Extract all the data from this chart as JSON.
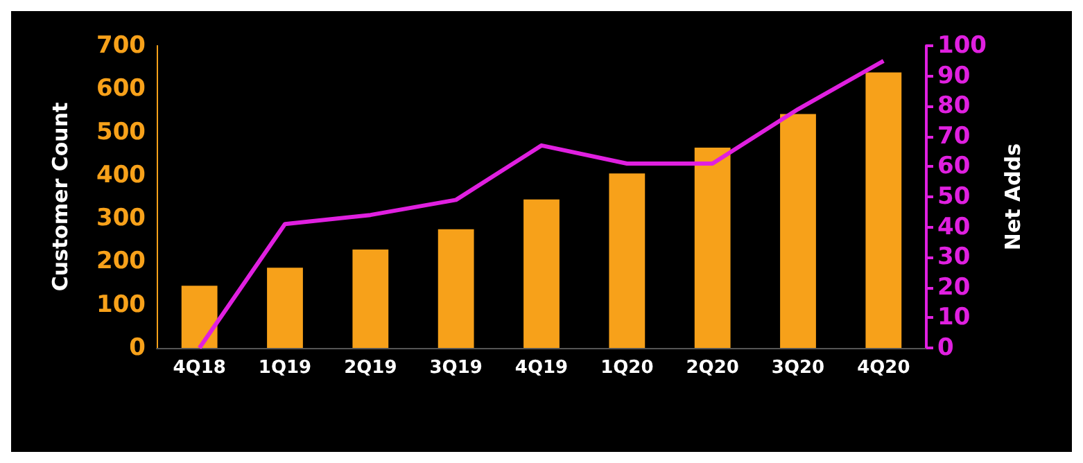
{
  "chart_data": {
    "type": "bar",
    "xlabel": null,
    "ylabel": "Customer Count",
    "y2label": "Net Adds",
    "categories": [
      "4Q18",
      "1Q19",
      "2Q19",
      "3Q19",
      "4Q19",
      "1Q20",
      "2Q20",
      "3Q20",
      "4Q20"
    ],
    "series": [
      {
        "color": "#f7a11a",
        "values": [
          144,
          186,
          228,
          275,
          344,
          404,
          464,
          542,
          638
        ]
      },
      {
        "type": "line",
        "axis": "y2",
        "color": "#e020e0",
        "marker": "none",
        "values": [
          0,
          41,
          44,
          49,
          67,
          61,
          61,
          79,
          95
        ]
      }
    ],
    "ylim": [
      0,
      700
    ],
    "yticks": [
      0,
      100,
      200,
      300,
      400,
      500,
      600,
      700
    ],
    "y2lim": [
      0,
      100
    ],
    "y2ticks": [
      0,
      10,
      20,
      30,
      40,
      50,
      60,
      70,
      80,
      90,
      100
    ],
    "grid": false
  }
}
